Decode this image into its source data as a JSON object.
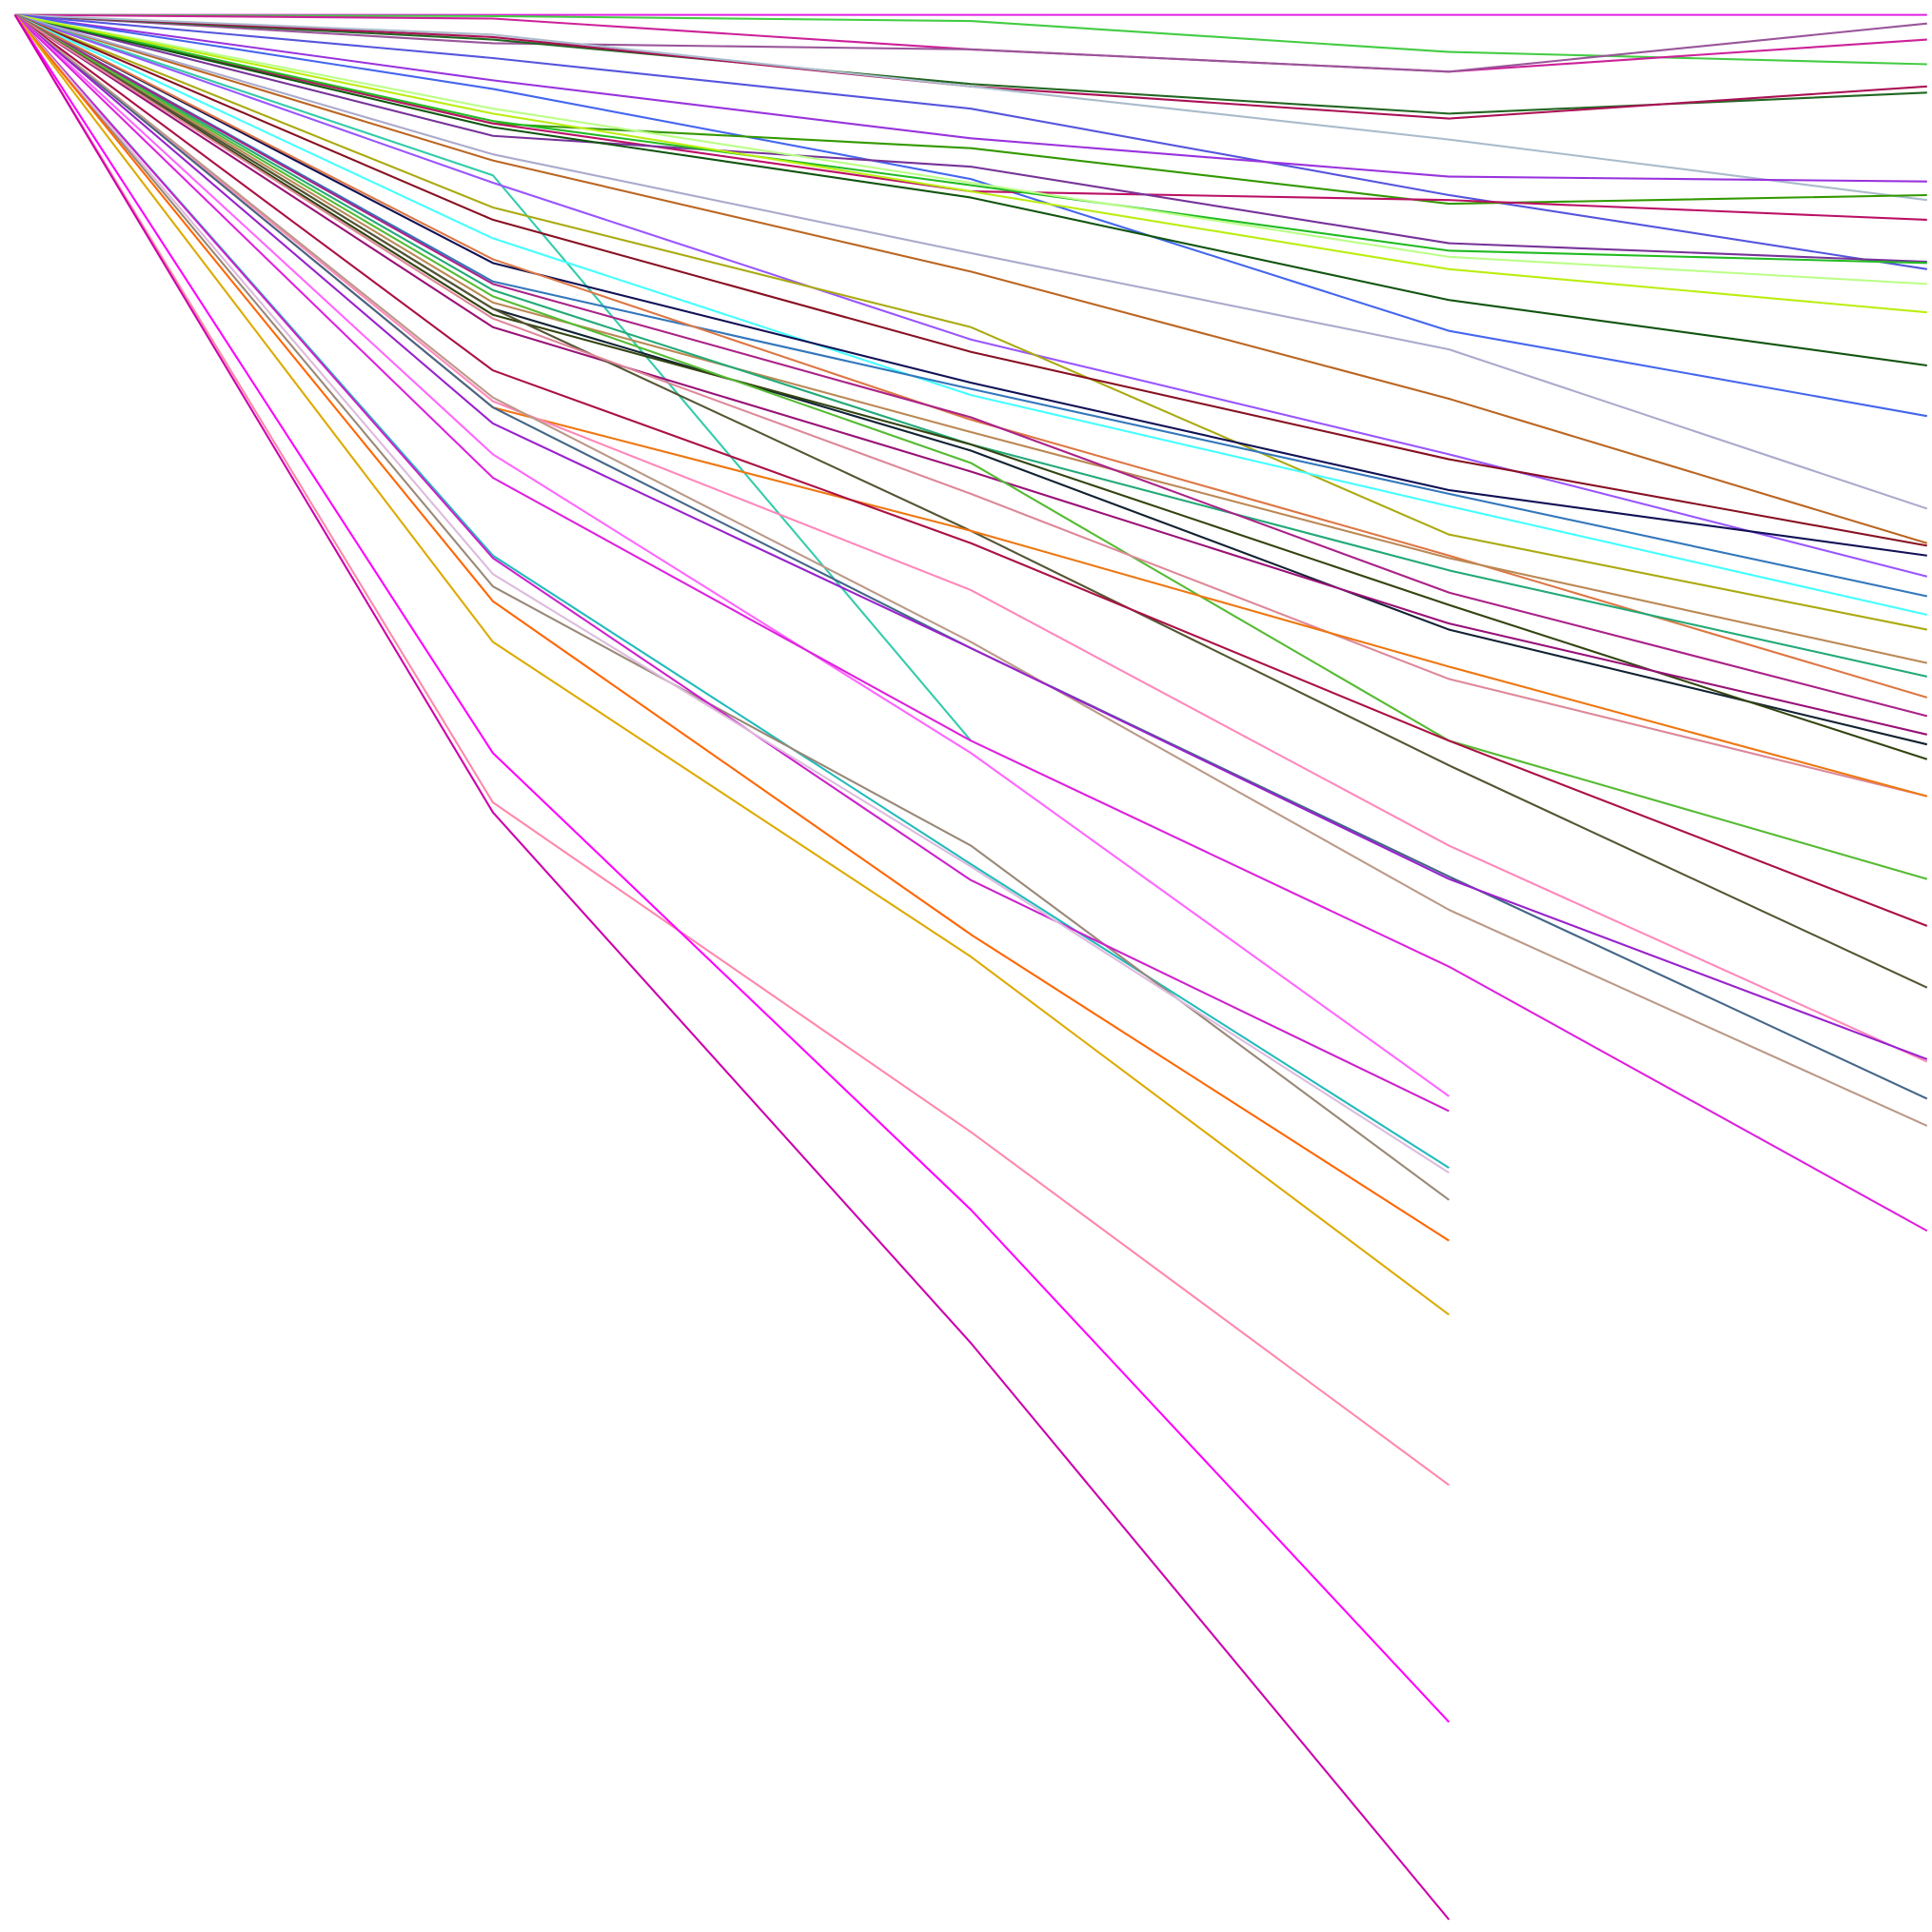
{
  "chart_data": {
    "type": "line",
    "title": "",
    "xlabel": "",
    "ylabel": "",
    "grid": false,
    "legend": "none",
    "x": [
      0,
      1,
      2,
      3,
      4
    ],
    "xlim": [
      0,
      4
    ],
    "ylim": [
      -1548,
      0
    ],
    "series": [
      {
        "color": "#e020e0",
        "values": [
          0,
          0,
          0,
          0,
          0
        ]
      },
      {
        "color": "#44cc44",
        "values": [
          0,
          -1,
          -5,
          -30,
          -40
        ]
      },
      {
        "color": "#cc2299",
        "values": [
          0,
          -3,
          -28,
          -46,
          -20
        ]
      },
      {
        "color": "#995599",
        "values": [
          0,
          -23,
          -28,
          -46,
          -7
        ]
      },
      {
        "color": "#226622",
        "values": [
          0,
          -20,
          -56,
          -80,
          -63
        ]
      },
      {
        "color": "#aa1155",
        "values": [
          0,
          -18,
          -58,
          -84,
          -58
        ]
      },
      {
        "color": "#aabbcc",
        "values": [
          0,
          -16,
          -58,
          -101,
          -150
        ]
      },
      {
        "color": "#5555dd",
        "values": [
          0,
          -35,
          -76,
          -146,
          -206
        ]
      },
      {
        "color": "#9933dd",
        "values": [
          0,
          -53,
          -100,
          -131,
          -135
        ]
      },
      {
        "color": "#4466ee",
        "values": [
          0,
          -60,
          -133,
          -256,
          -325
        ]
      },
      {
        "color": "#339900",
        "values": [
          0,
          -88,
          -108,
          -153,
          -146
        ]
      },
      {
        "color": "#bb1166",
        "values": [
          0,
          -88,
          -143,
          -150,
          -166
        ]
      },
      {
        "color": "#773399",
        "values": [
          0,
          -98,
          -123,
          -185,
          -200
        ]
      },
      {
        "color": "#115511",
        "values": [
          0,
          -91,
          -148,
          -231,
          -284
        ]
      },
      {
        "color": "#22bb22",
        "values": [
          0,
          -86,
          -138,
          -191,
          -201
        ]
      },
      {
        "color": "#bbff88",
        "values": [
          0,
          -76,
          -136,
          -196,
          -218
        ]
      },
      {
        "color": "#bbee11",
        "values": [
          0,
          -80,
          -143,
          -206,
          -241
        ]
      },
      {
        "color": "#bb6622",
        "values": [
          0,
          -118,
          -208,
          -311,
          -428
        ]
      },
      {
        "color": "#aaaacc",
        "values": [
          0,
          -113,
          -193,
          -271,
          -400
        ]
      },
      {
        "color": "#33ccaa",
        "values": [
          0,
          -130,
          -588,
          null,
          null
        ]
      },
      {
        "color": "#9955ff",
        "values": [
          0,
          -136,
          -263,
          -356,
          -455
        ]
      },
      {
        "color": "#aaaa11",
        "values": [
          0,
          -156,
          -253,
          -421,
          -498
        ]
      },
      {
        "color": "#881122",
        "values": [
          0,
          -166,
          -273,
          -360,
          -430
        ]
      },
      {
        "color": "#44ffff",
        "values": [
          0,
          -181,
          -308,
          -398,
          -486
        ]
      },
      {
        "color": "#111155",
        "values": [
          0,
          -201,
          -298,
          -385,
          -438
        ]
      },
      {
        "color": "#3377bb",
        "values": [
          0,
          -216,
          -303,
          -388,
          -471
        ]
      },
      {
        "color": "#dd7744",
        "values": [
          0,
          -198,
          -328,
          -438,
          -553
        ]
      },
      {
        "color": "#bb8855",
        "values": [
          0,
          -233,
          -338,
          -440,
          -525
        ]
      },
      {
        "color": "#22aa77",
        "values": [
          0,
          -223,
          -348,
          -450,
          -536
        ]
      },
      {
        "color": "#112233",
        "values": [
          0,
          -238,
          -353,
          -498,
          -591
        ]
      },
      {
        "color": "#334411",
        "values": [
          0,
          -243,
          -348,
          -478,
          -603
        ]
      },
      {
        "color": "#aa2288",
        "values": [
          0,
          -218,
          -326,
          -468,
          -568
        ]
      },
      {
        "color": "#991177",
        "values": [
          0,
          -253,
          -370,
          -493,
          -583
        ]
      },
      {
        "color": "#55bb33",
        "values": [
          0,
          -228,
          -363,
          -588,
          -700
        ]
      },
      {
        "color": "#555533",
        "values": [
          0,
          -238,
          -418,
          -608,
          -788
        ]
      },
      {
        "color": "#dd8899",
        "values": [
          0,
          -246,
          -388,
          -538,
          -633
        ]
      },
      {
        "color": "#ee7711",
        "values": [
          0,
          -318,
          -418,
          -528,
          -633
        ]
      },
      {
        "color": "#aa1144",
        "values": [
          0,
          -288,
          -428,
          -588,
          -738
        ]
      },
      {
        "color": "#ff88bb",
        "values": [
          0,
          -313,
          -466,
          -673,
          -848
        ]
      },
      {
        "color": "#446688",
        "values": [
          0,
          -318,
          -513,
          -698,
          -878
        ]
      },
      {
        "color": "#bb9988",
        "values": [
          0,
          -310,
          -508,
          -725,
          -900
        ]
      },
      {
        "color": "#9922cc",
        "values": [
          0,
          -331,
          -513,
          -700,
          -846
        ]
      },
      {
        "color": "#ff66ff",
        "values": [
          0,
          -356,
          -598,
          -876,
          null
        ]
      },
      {
        "color": "#dd22dd",
        "values": [
          0,
          -375,
          -588,
          -771,
          -985
        ]
      },
      {
        "color": "#22bbbb",
        "values": [
          0,
          -438,
          -688,
          -934,
          null
        ]
      },
      {
        "color": "#998877",
        "values": [
          0,
          -463,
          -673,
          -960,
          null
        ]
      },
      {
        "color": "#cc22cc",
        "values": [
          0,
          -440,
          -701,
          -888,
          null
        ]
      },
      {
        "color": "#ddbbdd",
        "values": [
          0,
          -453,
          -690,
          -938,
          null
        ]
      },
      {
        "color": "#ff6600",
        "values": [
          0,
          -475,
          -745,
          -993,
          null
        ]
      },
      {
        "color": "#ddaa00",
        "values": [
          0,
          -508,
          -763,
          -1053,
          null
        ]
      },
      {
        "color": "#ff88aa",
        "values": [
          0,
          -638,
          -905,
          -1191,
          null
        ]
      },
      {
        "color": "#ff00ff",
        "values": [
          0,
          -598,
          -968,
          -1383,
          null
        ]
      },
      {
        "color": "#cc00aa",
        "values": [
          0,
          -646,
          -1076,
          -1543,
          null
        ]
      }
    ]
  }
}
